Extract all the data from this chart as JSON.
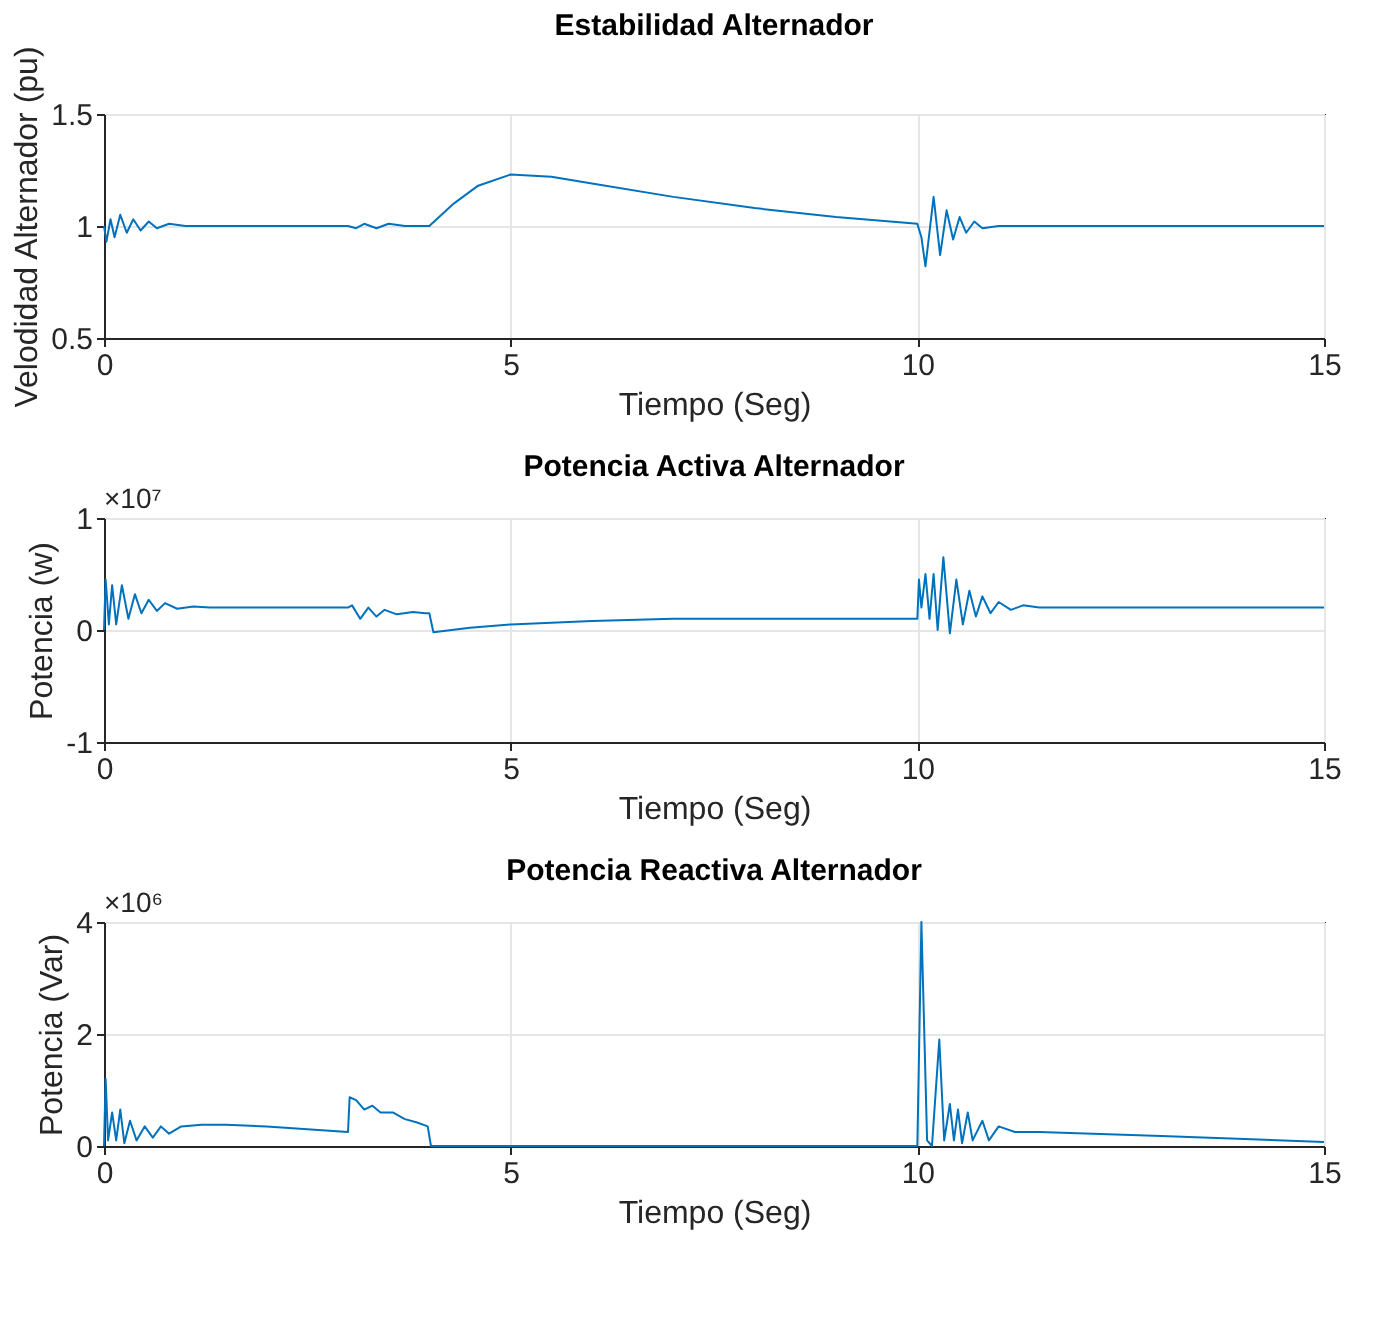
{
  "chart_data": [
    {
      "type": "line",
      "title": "Estabilidad Alternador",
      "xlabel": "Tiempo (Seg)",
      "ylabel": "Velodidad Alternador (pu)",
      "xlim": [
        0,
        15
      ],
      "xticks": [
        0,
        5,
        10,
        15
      ],
      "ylim": [
        0.5,
        1.5
      ],
      "yticks": [
        0.5,
        1,
        1.5
      ],
      "grid": true,
      "series": [
        {
          "color": "#0072bd",
          "x": [
            0,
            0.03,
            0.08,
            0.13,
            0.2,
            0.28,
            0.36,
            0.45,
            0.55,
            0.65,
            0.8,
            1,
            3,
            3.1,
            3.2,
            3.35,
            3.5,
            3.7,
            4.0,
            4.3,
            4.6,
            5,
            5.5,
            6,
            7,
            8,
            9,
            10,
            10.05,
            10.1,
            10.2,
            10.28,
            10.36,
            10.44,
            10.52,
            10.6,
            10.7,
            10.8,
            11,
            15
          ],
          "values": [
            1.0,
            0.93,
            1.03,
            0.95,
            1.05,
            0.97,
            1.03,
            0.98,
            1.02,
            0.99,
            1.01,
            1.0,
            1.0,
            0.99,
            1.01,
            0.99,
            1.01,
            1.0,
            1.0,
            1.1,
            1.18,
            1.23,
            1.22,
            1.19,
            1.13,
            1.08,
            1.04,
            1.01,
            0.95,
            0.82,
            1.13,
            0.87,
            1.07,
            0.94,
            1.04,
            0.97,
            1.02,
            0.99,
            1.0,
            1.0
          ]
        }
      ]
    },
    {
      "type": "line",
      "title": "Potencia Activa Alternador",
      "xlabel": "Tiempo (Seg)",
      "ylabel": "Potencia (w)",
      "annotations": [
        "×10⁷"
      ],
      "xlim": [
        0,
        15
      ],
      "xticks": [
        0,
        5,
        10,
        15
      ],
      "ylim": [
        -1,
        1
      ],
      "yticks": [
        -1,
        0,
        1
      ],
      "grid": true,
      "series": [
        {
          "color": "#0072bd",
          "x": [
            0,
            0.02,
            0.06,
            0.1,
            0.15,
            0.22,
            0.3,
            0.38,
            0.46,
            0.55,
            0.65,
            0.75,
            0.9,
            1.1,
            1.3,
            3.0,
            3.05,
            3.15,
            3.25,
            3.35,
            3.45,
            3.6,
            3.8,
            3.95,
            4.0,
            4.05,
            4.5,
            5,
            6,
            7,
            10,
            10.02,
            10.05,
            10.1,
            10.15,
            10.2,
            10.25,
            10.32,
            10.4,
            10.48,
            10.56,
            10.64,
            10.72,
            10.8,
            10.9,
            11,
            11.15,
            11.3,
            11.5,
            15
          ],
          "values": [
            0,
            0.45,
            0.05,
            0.4,
            0.05,
            0.4,
            0.1,
            0.32,
            0.15,
            0.27,
            0.17,
            0.24,
            0.19,
            0.21,
            0.2,
            0.2,
            0.22,
            0.1,
            0.2,
            0.12,
            0.18,
            0.14,
            0.16,
            0.15,
            0.15,
            -0.02,
            0.02,
            0.05,
            0.08,
            0.1,
            0.1,
            0.45,
            0.2,
            0.5,
            0.1,
            0.5,
            0.0,
            0.65,
            -0.03,
            0.45,
            0.05,
            0.35,
            0.12,
            0.3,
            0.15,
            0.25,
            0.18,
            0.22,
            0.2,
            0.2
          ]
        }
      ]
    },
    {
      "type": "line",
      "title": "Potencia Reactiva Alternador",
      "xlabel": "Tiempo (Seg)",
      "ylabel": "Potencia (Var)",
      "annotations": [
        "×10⁶"
      ],
      "xlim": [
        0,
        15
      ],
      "xticks": [
        0,
        5,
        10,
        15
      ],
      "ylim": [
        0,
        4
      ],
      "yticks": [
        0,
        2,
        4
      ],
      "grid": true,
      "series": [
        {
          "color": "#0072bd",
          "x": [
            0,
            0.02,
            0.05,
            0.1,
            0.15,
            0.2,
            0.25,
            0.32,
            0.4,
            0.5,
            0.6,
            0.7,
            0.8,
            0.95,
            1.2,
            1.5,
            2,
            3,
            3.02,
            3.1,
            3.2,
            3.3,
            3.4,
            3.55,
            3.7,
            3.85,
            3.98,
            4.02,
            10,
            10.05,
            10.12,
            10.18,
            10.27,
            10.33,
            10.4,
            10.45,
            10.5,
            10.55,
            10.62,
            10.68,
            10.8,
            10.88,
            11,
            11.2,
            11.5,
            13,
            15
          ],
          "values": [
            0,
            1.2,
            0.1,
            0.6,
            0.1,
            0.65,
            0.05,
            0.45,
            0.1,
            0.35,
            0.15,
            0.35,
            0.22,
            0.35,
            0.38,
            0.38,
            0.35,
            0.25,
            0.87,
            0.82,
            0.65,
            0.72,
            0.6,
            0.6,
            0.48,
            0.42,
            0.35,
            0.0,
            0,
            4.0,
            0.1,
            0.0,
            1.9,
            0.1,
            0.75,
            0.1,
            0.65,
            0.05,
            0.6,
            0.1,
            0.45,
            0.1,
            0.35,
            0.25,
            0.25,
            0.18,
            0.07
          ]
        }
      ]
    }
  ]
}
